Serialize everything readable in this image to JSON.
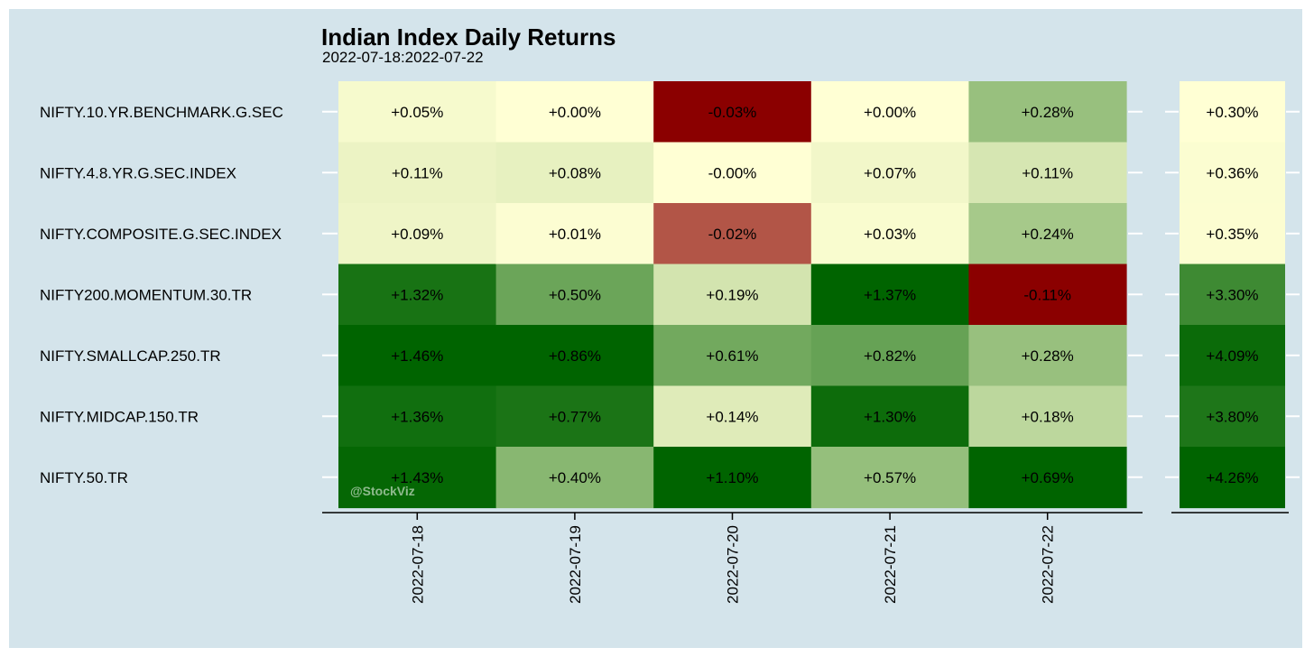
{
  "chart_data": {
    "type": "heatmap",
    "title": "Indian Index Daily Returns",
    "subtitle": "2022-07-18:2022-07-22",
    "rows": [
      "NIFTY.10.YR.BENCHMARK.G.SEC",
      "NIFTY.4.8.YR.G.SEC.INDEX",
      "NIFTY.COMPOSITE.G.SEC.INDEX",
      "NIFTY200.MOMENTUM.30.TR",
      "NIFTY.SMALLCAP.250.TR",
      "NIFTY.MIDCAP.150.TR",
      "NIFTY.50.TR"
    ],
    "columns": [
      "2022-07-18",
      "2022-07-19",
      "2022-07-20",
      "2022-07-21",
      "2022-07-22"
    ],
    "values": [
      [
        "+0.05%",
        "+0.00%",
        "-0.03%",
        "+0.00%",
        "+0.28%"
      ],
      [
        "+0.11%",
        "+0.08%",
        "-0.00%",
        "+0.07%",
        "+0.11%"
      ],
      [
        "+0.09%",
        "+0.01%",
        "-0.02%",
        "+0.03%",
        "+0.24%"
      ],
      [
        "+1.32%",
        "+0.50%",
        "+0.19%",
        "+1.37%",
        "-0.11%"
      ],
      [
        "+1.46%",
        "+0.86%",
        "+0.61%",
        "+0.82%",
        "+0.28%"
      ],
      [
        "+1.36%",
        "+0.77%",
        "+0.14%",
        "+1.30%",
        "+0.18%"
      ],
      [
        "+1.43%",
        "+0.40%",
        "+1.10%",
        "+0.57%",
        "+0.69%"
      ]
    ],
    "totals": [
      "+0.30%",
      "+0.36%",
      "+0.35%",
      "+3.30%",
      "+4.09%",
      "+3.80%",
      "+4.26%"
    ],
    "colors": {
      "low": "#8b0000",
      "mid": "#ffffd4",
      "high": "#006400",
      "background": "#d4e4eb"
    },
    "watermark": "@StockViz"
  }
}
